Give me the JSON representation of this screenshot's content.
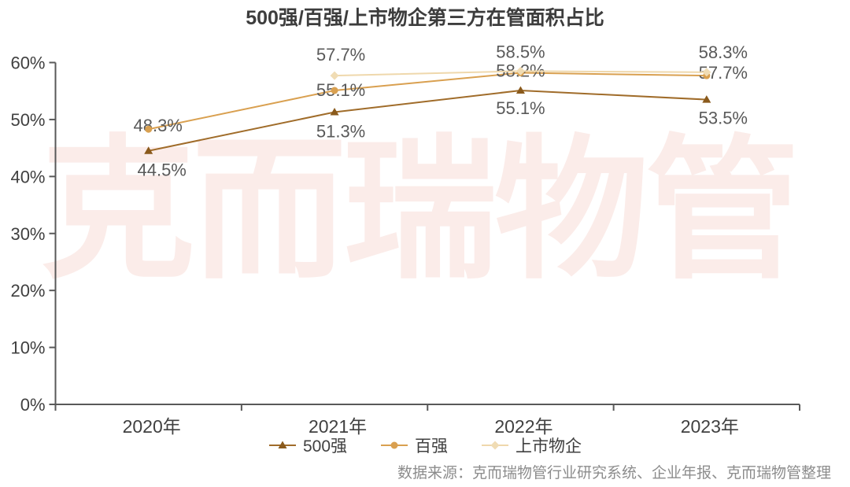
{
  "page": {
    "title": "500强/百强/上市物企第三方在管面积占比",
    "watermark": "克而瑞物管",
    "source": "数据来源：克而瑞物管行业研究系统、企业年报、克而瑞物管整理"
  },
  "chart_data": {
    "type": "line",
    "title": "500强/百强/上市物企第三方在管面积占比",
    "categories": [
      "2020年",
      "2021年",
      "2022年",
      "2023年"
    ],
    "series": [
      {
        "id": "top500",
        "name": "500强",
        "values": [
          44.5,
          51.3,
          55.1,
          53.5
        ],
        "labels": [
          "44.5%",
          "51.3%",
          "55.1%",
          "53.5%"
        ],
        "line_color": "#A06C2A",
        "marker": "triangle",
        "marker_color": "#8A5A1C"
      },
      {
        "id": "top100",
        "name": "百强",
        "values": [
          48.3,
          55.1,
          58.2,
          57.7
        ],
        "labels": [
          "48.3%",
          "55.1%",
          "58.2%",
          "57.7%"
        ],
        "line_color": "#D9A050",
        "marker": "circle",
        "marker_color": "#D9A050"
      },
      {
        "id": "listed",
        "name": "上市物企",
        "values": [
          null,
          57.7,
          58.5,
          58.3
        ],
        "labels": [
          null,
          "57.7%",
          "58.5%",
          "58.3%"
        ],
        "line_color": "#EFD8AC",
        "marker": "diamond",
        "marker_color": "#F0DCB4"
      }
    ],
    "ylim": [
      0,
      60
    ],
    "ytick_step": 10,
    "ytick_labels": [
      "0%",
      "10%",
      "20%",
      "30%",
      "40%",
      "50%",
      "60%"
    ],
    "grid": false,
    "legend_position": "bottom",
    "axis_color": "#595959",
    "tick_label_color": "#404040",
    "data_label_color": "#595959",
    "watermark_color": "#FBECE9"
  }
}
